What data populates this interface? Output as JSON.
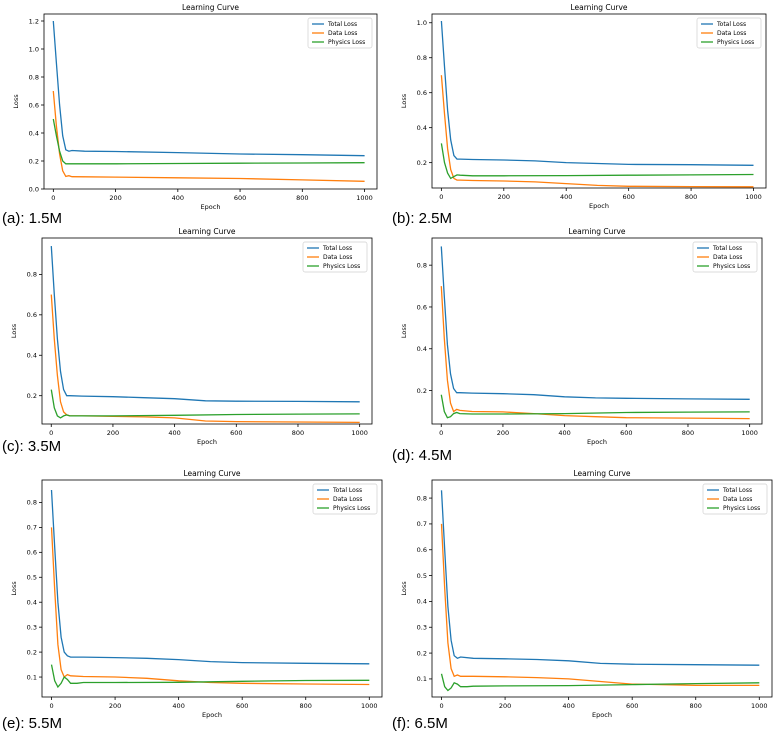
{
  "legend_labels": [
    "Total Loss",
    "Data Loss",
    "Physics Loss"
  ],
  "colors": {
    "total": "#1f77b4",
    "data": "#ff7f0e",
    "physics": "#2ca02c",
    "axis": "#000000"
  },
  "chart_data": [
    {
      "type": "line",
      "caption": "(a): 1.5M",
      "title": "Learning Curve",
      "xlabel": "Epoch",
      "ylabel": "Loss",
      "xlim": [
        -30,
        1040
      ],
      "ylim": [
        0,
        1.25
      ],
      "xticks": [
        0,
        200,
        400,
        600,
        800,
        1000
      ],
      "yticks": [
        0.0,
        0.2,
        0.4,
        0.6,
        0.8,
        1.0,
        1.2
      ],
      "ytick_labels": [
        "0.0",
        "0.2",
        "0.4",
        "0.6",
        "0.8",
        "1.0",
        "1.2"
      ],
      "legend": "top-right",
      "series": [
        {
          "name": "Total Loss",
          "x": [
            0,
            10,
            20,
            30,
            40,
            50,
            60,
            100,
            200,
            400,
            600,
            800,
            1000
          ],
          "y": [
            1.2,
            0.9,
            0.6,
            0.38,
            0.28,
            0.27,
            0.275,
            0.27,
            0.268,
            0.26,
            0.25,
            0.245,
            0.238
          ]
        },
        {
          "name": "Data Loss",
          "x": [
            0,
            10,
            20,
            30,
            40,
            50,
            60,
            100,
            200,
            400,
            600,
            800,
            1000
          ],
          "y": [
            0.7,
            0.45,
            0.25,
            0.13,
            0.09,
            0.095,
            0.088,
            0.087,
            0.085,
            0.08,
            0.075,
            0.065,
            0.055
          ]
        },
        {
          "name": "Physics Loss",
          "x": [
            0,
            10,
            20,
            30,
            40,
            60,
            100,
            200,
            400,
            600,
            800,
            1000
          ],
          "y": [
            0.5,
            0.38,
            0.27,
            0.2,
            0.18,
            0.18,
            0.18,
            0.18,
            0.182,
            0.184,
            0.186,
            0.188
          ]
        }
      ]
    },
    {
      "type": "line",
      "caption": "(b): 2.5M",
      "title": "Learning Curve",
      "xlabel": "Epoch",
      "ylabel": "Loss",
      "xlim": [
        -30,
        1040
      ],
      "ylim": [
        0.055,
        1.05
      ],
      "xticks": [
        0,
        200,
        400,
        600,
        800,
        1000
      ],
      "yticks": [
        0.2,
        0.4,
        0.6,
        0.8,
        1.0
      ],
      "ytick_labels": [
        "0.2",
        "0.4",
        "0.6",
        "0.8",
        "1.0"
      ],
      "legend": "top-right",
      "series": [
        {
          "name": "Total Loss",
          "x": [
            0,
            10,
            20,
            30,
            40,
            50,
            60,
            100,
            200,
            300,
            400,
            500,
            600,
            800,
            1000
          ],
          "y": [
            1.01,
            0.75,
            0.5,
            0.33,
            0.24,
            0.22,
            0.22,
            0.218,
            0.215,
            0.21,
            0.2,
            0.195,
            0.19,
            0.188,
            0.185
          ]
        },
        {
          "name": "Data Loss",
          "x": [
            0,
            10,
            20,
            30,
            40,
            50,
            60,
            100,
            200,
            300,
            400,
            500,
            600,
            800,
            1000
          ],
          "y": [
            0.7,
            0.48,
            0.28,
            0.16,
            0.11,
            0.1,
            0.1,
            0.098,
            0.095,
            0.09,
            0.08,
            0.07,
            0.065,
            0.063,
            0.062
          ]
        },
        {
          "name": "Physics Loss",
          "x": [
            0,
            10,
            20,
            30,
            40,
            50,
            60,
            100,
            200,
            400,
            600,
            800,
            1000
          ],
          "y": [
            0.31,
            0.2,
            0.14,
            0.11,
            0.12,
            0.13,
            0.128,
            0.125,
            0.125,
            0.126,
            0.128,
            0.13,
            0.132
          ]
        }
      ]
    },
    {
      "type": "line",
      "caption": "(c): 3.5M",
      "title": "Learning Curve",
      "xlabel": "Epoch",
      "ylabel": "Loss",
      "xlim": [
        -30,
        1040
      ],
      "ylim": [
        0.06,
        0.98
      ],
      "xticks": [
        0,
        200,
        400,
        600,
        800,
        1000
      ],
      "yticks": [
        0.2,
        0.4,
        0.6,
        0.8
      ],
      "ytick_labels": [
        "0.2",
        "0.4",
        "0.6",
        "0.8"
      ],
      "legend": "top-right",
      "series": [
        {
          "name": "Total Loss",
          "x": [
            0,
            10,
            20,
            30,
            40,
            50,
            60,
            100,
            200,
            300,
            400,
            500,
            600,
            800,
            1000
          ],
          "y": [
            0.94,
            0.7,
            0.48,
            0.32,
            0.23,
            0.2,
            0.2,
            0.198,
            0.195,
            0.19,
            0.185,
            0.175,
            0.173,
            0.172,
            0.17
          ]
        },
        {
          "name": "Data Loss",
          "x": [
            0,
            10,
            20,
            30,
            40,
            50,
            60,
            100,
            200,
            300,
            400,
            500,
            600,
            800,
            1000
          ],
          "y": [
            0.7,
            0.48,
            0.3,
            0.17,
            0.12,
            0.105,
            0.1,
            0.1,
            0.098,
            0.095,
            0.09,
            0.075,
            0.072,
            0.07,
            0.068
          ]
        },
        {
          "name": "Physics Loss",
          "x": [
            0,
            10,
            20,
            30,
            40,
            50,
            60,
            100,
            200,
            400,
            600,
            800,
            1000
          ],
          "y": [
            0.23,
            0.14,
            0.1,
            0.09,
            0.1,
            0.105,
            0.1,
            0.1,
            0.1,
            0.103,
            0.107,
            0.109,
            0.11
          ]
        }
      ]
    },
    {
      "type": "line",
      "caption": "(d): 4.5M",
      "title": "Learning Curve",
      "xlabel": "Epoch",
      "ylabel": "Loss",
      "xlim": [
        -30,
        1040
      ],
      "ylim": [
        0.04,
        0.93
      ],
      "xticks": [
        0,
        200,
        400,
        600,
        800,
        1000
      ],
      "yticks": [
        0.2,
        0.4,
        0.6,
        0.8
      ],
      "ytick_labels": [
        "0.2",
        "0.4",
        "0.6",
        "0.8"
      ],
      "legend": "top-right",
      "series": [
        {
          "name": "Total Loss",
          "x": [
            0,
            10,
            20,
            30,
            40,
            50,
            60,
            100,
            200,
            300,
            400,
            500,
            600,
            800,
            1000
          ],
          "y": [
            0.89,
            0.65,
            0.42,
            0.28,
            0.21,
            0.19,
            0.19,
            0.188,
            0.185,
            0.18,
            0.17,
            0.165,
            0.163,
            0.16,
            0.158
          ]
        },
        {
          "name": "Data Loss",
          "x": [
            0,
            10,
            20,
            30,
            40,
            50,
            60,
            100,
            200,
            300,
            400,
            500,
            600,
            800,
            1000
          ],
          "y": [
            0.7,
            0.45,
            0.25,
            0.14,
            0.1,
            0.11,
            0.105,
            0.1,
            0.098,
            0.09,
            0.08,
            0.075,
            0.07,
            0.068,
            0.066
          ]
        },
        {
          "name": "Physics Loss",
          "x": [
            0,
            10,
            20,
            30,
            40,
            50,
            60,
            100,
            200,
            400,
            600,
            800,
            1000
          ],
          "y": [
            0.18,
            0.1,
            0.07,
            0.075,
            0.09,
            0.095,
            0.09,
            0.088,
            0.088,
            0.09,
            0.095,
            0.097,
            0.098
          ]
        }
      ]
    },
    {
      "type": "line",
      "caption": "(e): 5.5M",
      "title": "Learning Curve",
      "xlabel": "Epoch",
      "ylabel": "Loss",
      "xlim": [
        -30,
        1040
      ],
      "ylim": [
        0.02,
        0.89
      ],
      "xticks": [
        0,
        200,
        400,
        600,
        800,
        1000
      ],
      "yticks": [
        0.1,
        0.2,
        0.3,
        0.4,
        0.5,
        0.6,
        0.7,
        0.8
      ],
      "ytick_labels": [
        "0.1",
        "0.2",
        "0.3",
        "0.4",
        "0.5",
        "0.6",
        "0.7",
        "0.8"
      ],
      "legend": "top-right",
      "series": [
        {
          "name": "Total Loss",
          "x": [
            0,
            10,
            20,
            30,
            40,
            50,
            60,
            100,
            200,
            300,
            400,
            500,
            600,
            800,
            1000
          ],
          "y": [
            0.85,
            0.62,
            0.4,
            0.26,
            0.2,
            0.185,
            0.18,
            0.18,
            0.178,
            0.175,
            0.17,
            0.162,
            0.158,
            0.155,
            0.153
          ]
        },
        {
          "name": "Data Loss",
          "x": [
            0,
            10,
            20,
            30,
            40,
            50,
            60,
            100,
            200,
            300,
            400,
            500,
            600,
            800,
            1000
          ],
          "y": [
            0.7,
            0.45,
            0.23,
            0.13,
            0.1,
            0.11,
            0.105,
            0.102,
            0.1,
            0.095,
            0.085,
            0.078,
            0.075,
            0.072,
            0.07
          ]
        },
        {
          "name": "Physics Loss",
          "x": [
            0,
            10,
            20,
            30,
            40,
            50,
            60,
            80,
            100,
            200,
            400,
            600,
            800,
            1000
          ],
          "y": [
            0.15,
            0.085,
            0.06,
            0.075,
            0.1,
            0.09,
            0.075,
            0.075,
            0.078,
            0.078,
            0.079,
            0.083,
            0.086,
            0.087
          ]
        }
      ]
    },
    {
      "type": "line",
      "caption": "(f): 6.5M",
      "title": "Learning Curve",
      "xlabel": "Epoch",
      "ylabel": "Loss",
      "xlim": [
        -30,
        1040
      ],
      "ylim": [
        0.03,
        0.87
      ],
      "xticks": [
        0,
        200,
        400,
        600,
        800,
        1000
      ],
      "yticks": [
        0.1,
        0.2,
        0.3,
        0.4,
        0.5,
        0.6,
        0.7,
        0.8
      ],
      "ytick_labels": [
        "0.1",
        "0.2",
        "0.3",
        "0.4",
        "0.5",
        "0.6",
        "0.7",
        "0.8"
      ],
      "legend": "top-right",
      "series": [
        {
          "name": "Total Loss",
          "x": [
            0,
            10,
            20,
            30,
            40,
            50,
            60,
            100,
            200,
            300,
            400,
            500,
            600,
            800,
            1000
          ],
          "y": [
            0.83,
            0.6,
            0.38,
            0.25,
            0.19,
            0.18,
            0.185,
            0.18,
            0.178,
            0.175,
            0.17,
            0.16,
            0.157,
            0.155,
            0.153
          ]
        },
        {
          "name": "Data Loss",
          "x": [
            0,
            10,
            20,
            30,
            40,
            50,
            60,
            100,
            200,
            300,
            400,
            500,
            600,
            800,
            1000
          ],
          "y": [
            0.7,
            0.45,
            0.24,
            0.14,
            0.11,
            0.115,
            0.11,
            0.11,
            0.108,
            0.105,
            0.1,
            0.09,
            0.08,
            0.075,
            0.075
          ]
        },
        {
          "name": "Physics Loss",
          "x": [
            0,
            10,
            20,
            30,
            40,
            50,
            60,
            80,
            100,
            200,
            400,
            600,
            800,
            1000
          ],
          "y": [
            0.12,
            0.07,
            0.055,
            0.065,
            0.085,
            0.08,
            0.07,
            0.07,
            0.072,
            0.073,
            0.074,
            0.078,
            0.082,
            0.085
          ]
        }
      ]
    }
  ]
}
